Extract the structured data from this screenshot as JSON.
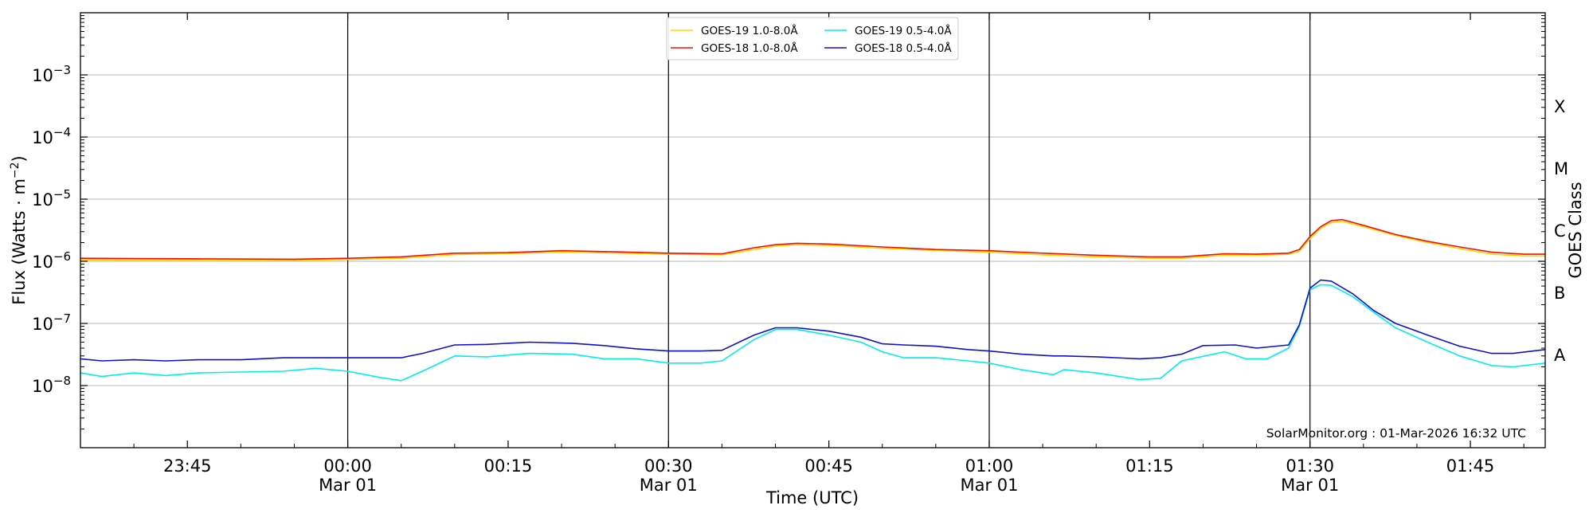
{
  "chart_data": {
    "type": "line",
    "xlabel": "Time (UTC)",
    "ylabel": "Flux (Watts · m",
    "ylabel_sup": "−2",
    "ylabel_close": ")",
    "right_label": "GOES Class",
    "y_scale": "log",
    "ylim": [
      1e-09,
      0.01
    ],
    "xlim": [
      "2026-02-28 23:35",
      "2026-03-01 01:52"
    ],
    "y_ticks": [
      {
        "value": 1e-08,
        "label": "10",
        "exp": "−8"
      },
      {
        "value": 1e-07,
        "label": "10",
        "exp": "−7"
      },
      {
        "value": 1e-06,
        "label": "10",
        "exp": "−6"
      },
      {
        "value": 1e-05,
        "label": "10",
        "exp": "−5"
      },
      {
        "value": 0.0001,
        "label": "10",
        "exp": "−4"
      },
      {
        "value": 0.001,
        "label": "10",
        "exp": "−3"
      }
    ],
    "x_ticks": [
      {
        "time": "23:45",
        "label": "23:45",
        "date": ""
      },
      {
        "time": "00:00",
        "label": "00:00",
        "date": "Mar 01"
      },
      {
        "time": "00:15",
        "label": "00:15",
        "date": ""
      },
      {
        "time": "00:30",
        "label": "00:30",
        "date": "Mar 01"
      },
      {
        "time": "00:45",
        "label": "00:45",
        "date": ""
      },
      {
        "time": "01:00",
        "label": "01:00",
        "date": "Mar 01"
      },
      {
        "time": "01:15",
        "label": "01:15",
        "date": ""
      },
      {
        "time": "01:30",
        "label": "01:30",
        "date": "Mar 01"
      },
      {
        "time": "01:45",
        "label": "01:45",
        "date": ""
      }
    ],
    "vertical_lines": [
      "00:00",
      "00:30",
      "01:00",
      "01:30"
    ],
    "goes_classes": [
      {
        "label": "A",
        "value": 1e-08
      },
      {
        "label": "B",
        "value": 1e-07
      },
      {
        "label": "C",
        "value": 1e-06
      },
      {
        "label": "M",
        "value": 1e-05
      },
      {
        "label": "X",
        "value": 0.0001
      }
    ],
    "grid": "horizontal",
    "legend_position": "top-center",
    "annotation": "SolarMonitor.org : 01-Mar-2026 16:32 UTC",
    "series": [
      {
        "name": "GOES-19 1.0-8.0Å",
        "color": "#ffd700",
        "points": [
          [
            "23:35",
            1.05e-06
          ],
          [
            "23:45",
            1.05e-06
          ],
          [
            "23:55",
            1.04e-06
          ],
          [
            "00:00",
            1.07e-06
          ],
          [
            "00:05",
            1.12e-06
          ],
          [
            "00:10",
            1.28e-06
          ],
          [
            "00:15",
            1.33e-06
          ],
          [
            "00:20",
            1.4e-06
          ],
          [
            "00:25",
            1.36e-06
          ],
          [
            "00:30",
            1.3e-06
          ],
          [
            "00:35",
            1.27e-06
          ],
          [
            "00:38",
            1.55e-06
          ],
          [
            "00:40",
            1.75e-06
          ],
          [
            "00:42",
            1.85e-06
          ],
          [
            "00:45",
            1.8e-06
          ],
          [
            "00:50",
            1.62e-06
          ],
          [
            "00:55",
            1.5e-06
          ],
          [
            "01:00",
            1.4e-06
          ],
          [
            "01:05",
            1.27e-06
          ],
          [
            "01:10",
            1.18e-06
          ],
          [
            "01:15",
            1.12e-06
          ],
          [
            "01:18",
            1.12e-06
          ],
          [
            "01:22",
            1.25e-06
          ],
          [
            "01:25",
            1.24e-06
          ],
          [
            "01:28",
            1.3e-06
          ],
          [
            "01:29",
            1.45e-06
          ],
          [
            "01:30",
            2.3e-06
          ],
          [
            "01:31",
            3.4e-06
          ],
          [
            "01:32",
            4.2e-06
          ],
          [
            "01:33",
            4.4e-06
          ],
          [
            "01:35",
            3.6e-06
          ],
          [
            "01:38",
            2.6e-06
          ],
          [
            "01:41",
            2e-06
          ],
          [
            "01:44",
            1.6e-06
          ],
          [
            "01:47",
            1.3e-06
          ],
          [
            "01:50",
            1.22e-06
          ],
          [
            "01:52",
            1.22e-06
          ]
        ]
      },
      {
        "name": "GOES-18 1.0-8.0Å",
        "color": "#ee1111",
        "points": [
          [
            "23:35",
            1.12e-06
          ],
          [
            "23:45",
            1.1e-06
          ],
          [
            "23:55",
            1.08e-06
          ],
          [
            "00:00",
            1.12e-06
          ],
          [
            "00:05",
            1.18e-06
          ],
          [
            "00:10",
            1.35e-06
          ],
          [
            "00:15",
            1.38e-06
          ],
          [
            "00:20",
            1.48e-06
          ],
          [
            "00:25",
            1.42e-06
          ],
          [
            "00:30",
            1.35e-06
          ],
          [
            "00:35",
            1.32e-06
          ],
          [
            "00:38",
            1.65e-06
          ],
          [
            "00:40",
            1.85e-06
          ],
          [
            "00:42",
            1.95e-06
          ],
          [
            "00:45",
            1.9e-06
          ],
          [
            "00:50",
            1.7e-06
          ],
          [
            "00:55",
            1.55e-06
          ],
          [
            "01:00",
            1.48e-06
          ],
          [
            "01:05",
            1.35e-06
          ],
          [
            "01:10",
            1.25e-06
          ],
          [
            "01:15",
            1.18e-06
          ],
          [
            "01:18",
            1.18e-06
          ],
          [
            "01:22",
            1.32e-06
          ],
          [
            "01:25",
            1.3e-06
          ],
          [
            "01:28",
            1.35e-06
          ],
          [
            "01:29",
            1.55e-06
          ],
          [
            "01:30",
            2.5e-06
          ],
          [
            "01:31",
            3.6e-06
          ],
          [
            "01:32",
            4.5e-06
          ],
          [
            "01:33",
            4.7e-06
          ],
          [
            "01:35",
            3.8e-06
          ],
          [
            "01:38",
            2.7e-06
          ],
          [
            "01:41",
            2.1e-06
          ],
          [
            "01:44",
            1.7e-06
          ],
          [
            "01:47",
            1.4e-06
          ],
          [
            "01:50",
            1.3e-06
          ],
          [
            "01:52",
            1.3e-06
          ]
        ]
      },
      {
        "name": "GOES-19 0.5-4.0Å",
        "color": "#00eeee",
        "points": [
          [
            "23:35",
            1.6e-08
          ],
          [
            "23:37",
            1.4e-08
          ],
          [
            "23:40",
            1.6e-08
          ],
          [
            "23:43",
            1.45e-08
          ],
          [
            "23:46",
            1.6e-08
          ],
          [
            "23:50",
            1.65e-08
          ],
          [
            "23:54",
            1.7e-08
          ],
          [
            "23:57",
            1.9e-08
          ],
          [
            "00:00",
            1.7e-08
          ],
          [
            "00:03",
            1.35e-08
          ],
          [
            "00:05",
            1.2e-08
          ],
          [
            "00:07",
            1.7e-08
          ],
          [
            "00:10",
            3e-08
          ],
          [
            "00:13",
            2.9e-08
          ],
          [
            "00:17",
            3.3e-08
          ],
          [
            "00:21",
            3.2e-08
          ],
          [
            "00:24",
            2.7e-08
          ],
          [
            "00:27",
            2.7e-08
          ],
          [
            "00:30",
            2.3e-08
          ],
          [
            "00:33",
            2.3e-08
          ],
          [
            "00:35",
            2.5e-08
          ],
          [
            "00:38",
            5.5e-08
          ],
          [
            "00:40",
            8e-08
          ],
          [
            "00:42",
            8e-08
          ],
          [
            "00:45",
            6.5e-08
          ],
          [
            "00:48",
            5e-08
          ],
          [
            "00:50",
            3.5e-08
          ],
          [
            "00:52",
            2.8e-08
          ],
          [
            "00:55",
            2.8e-08
          ],
          [
            "00:58",
            2.5e-08
          ],
          [
            "01:00",
            2.3e-08
          ],
          [
            "01:03",
            1.8e-08
          ],
          [
            "01:06",
            1.5e-08
          ],
          [
            "01:07",
            1.8e-08
          ],
          [
            "01:10",
            1.6e-08
          ],
          [
            "01:14",
            1.25e-08
          ],
          [
            "01:16",
            1.3e-08
          ],
          [
            "01:18",
            2.5e-08
          ],
          [
            "01:22",
            3.5e-08
          ],
          [
            "01:24",
            2.7e-08
          ],
          [
            "01:26",
            2.7e-08
          ],
          [
            "01:28",
            4e-08
          ],
          [
            "01:29",
            9e-08
          ],
          [
            "01:30",
            3.5e-07
          ],
          [
            "01:31",
            4.2e-07
          ],
          [
            "01:32",
            4.1e-07
          ],
          [
            "01:34",
            2.7e-07
          ],
          [
            "01:36",
            1.5e-07
          ],
          [
            "01:38",
            8.5e-08
          ],
          [
            "01:41",
            5e-08
          ],
          [
            "01:44",
            3e-08
          ],
          [
            "01:47",
            2.1e-08
          ],
          [
            "01:49",
            2e-08
          ],
          [
            "01:52",
            2.3e-08
          ]
        ]
      },
      {
        "name": "GOES-18 0.5-4.0Å",
        "color": "#1111cc",
        "points": [
          [
            "23:35",
            2.7e-08
          ],
          [
            "23:37",
            2.5e-08
          ],
          [
            "23:40",
            2.6e-08
          ],
          [
            "23:43",
            2.5e-08
          ],
          [
            "23:46",
            2.6e-08
          ],
          [
            "23:50",
            2.6e-08
          ],
          [
            "23:54",
            2.8e-08
          ],
          [
            "23:57",
            2.8e-08
          ],
          [
            "00:00",
            2.8e-08
          ],
          [
            "00:03",
            2.8e-08
          ],
          [
            "00:05",
            2.8e-08
          ],
          [
            "00:07",
            3.3e-08
          ],
          [
            "00:10",
            4.5e-08
          ],
          [
            "00:13",
            4.6e-08
          ],
          [
            "00:17",
            5e-08
          ],
          [
            "00:21",
            4.8e-08
          ],
          [
            "00:24",
            4.4e-08
          ],
          [
            "00:27",
            3.9e-08
          ],
          [
            "00:30",
            3.6e-08
          ],
          [
            "00:33",
            3.6e-08
          ],
          [
            "00:35",
            3.7e-08
          ],
          [
            "00:38",
            6.5e-08
          ],
          [
            "00:40",
            8.5e-08
          ],
          [
            "00:42",
            8.5e-08
          ],
          [
            "00:45",
            7.5e-08
          ],
          [
            "00:48",
            6e-08
          ],
          [
            "00:50",
            4.7e-08
          ],
          [
            "00:52",
            4.5e-08
          ],
          [
            "00:55",
            4.3e-08
          ],
          [
            "00:58",
            3.8e-08
          ],
          [
            "01:00",
            3.6e-08
          ],
          [
            "01:03",
            3.2e-08
          ],
          [
            "01:06",
            3e-08
          ],
          [
            "01:07",
            3e-08
          ],
          [
            "01:10",
            2.9e-08
          ],
          [
            "01:14",
            2.7e-08
          ],
          [
            "01:16",
            2.8e-08
          ],
          [
            "01:18",
            3.2e-08
          ],
          [
            "01:20",
            4.4e-08
          ],
          [
            "01:23",
            4.5e-08
          ],
          [
            "01:25",
            4e-08
          ],
          [
            "01:28",
            4.5e-08
          ],
          [
            "01:29",
            9.5e-08
          ],
          [
            "01:30",
            3.7e-07
          ],
          [
            "01:31",
            5e-07
          ],
          [
            "01:32",
            4.8e-07
          ],
          [
            "01:34",
            3e-07
          ],
          [
            "01:36",
            1.6e-07
          ],
          [
            "01:38",
            1e-07
          ],
          [
            "01:41",
            6.5e-08
          ],
          [
            "01:44",
            4.3e-08
          ],
          [
            "01:47",
            3.3e-08
          ],
          [
            "01:49",
            3.3e-08
          ],
          [
            "01:52",
            3.8e-08
          ]
        ]
      }
    ]
  }
}
